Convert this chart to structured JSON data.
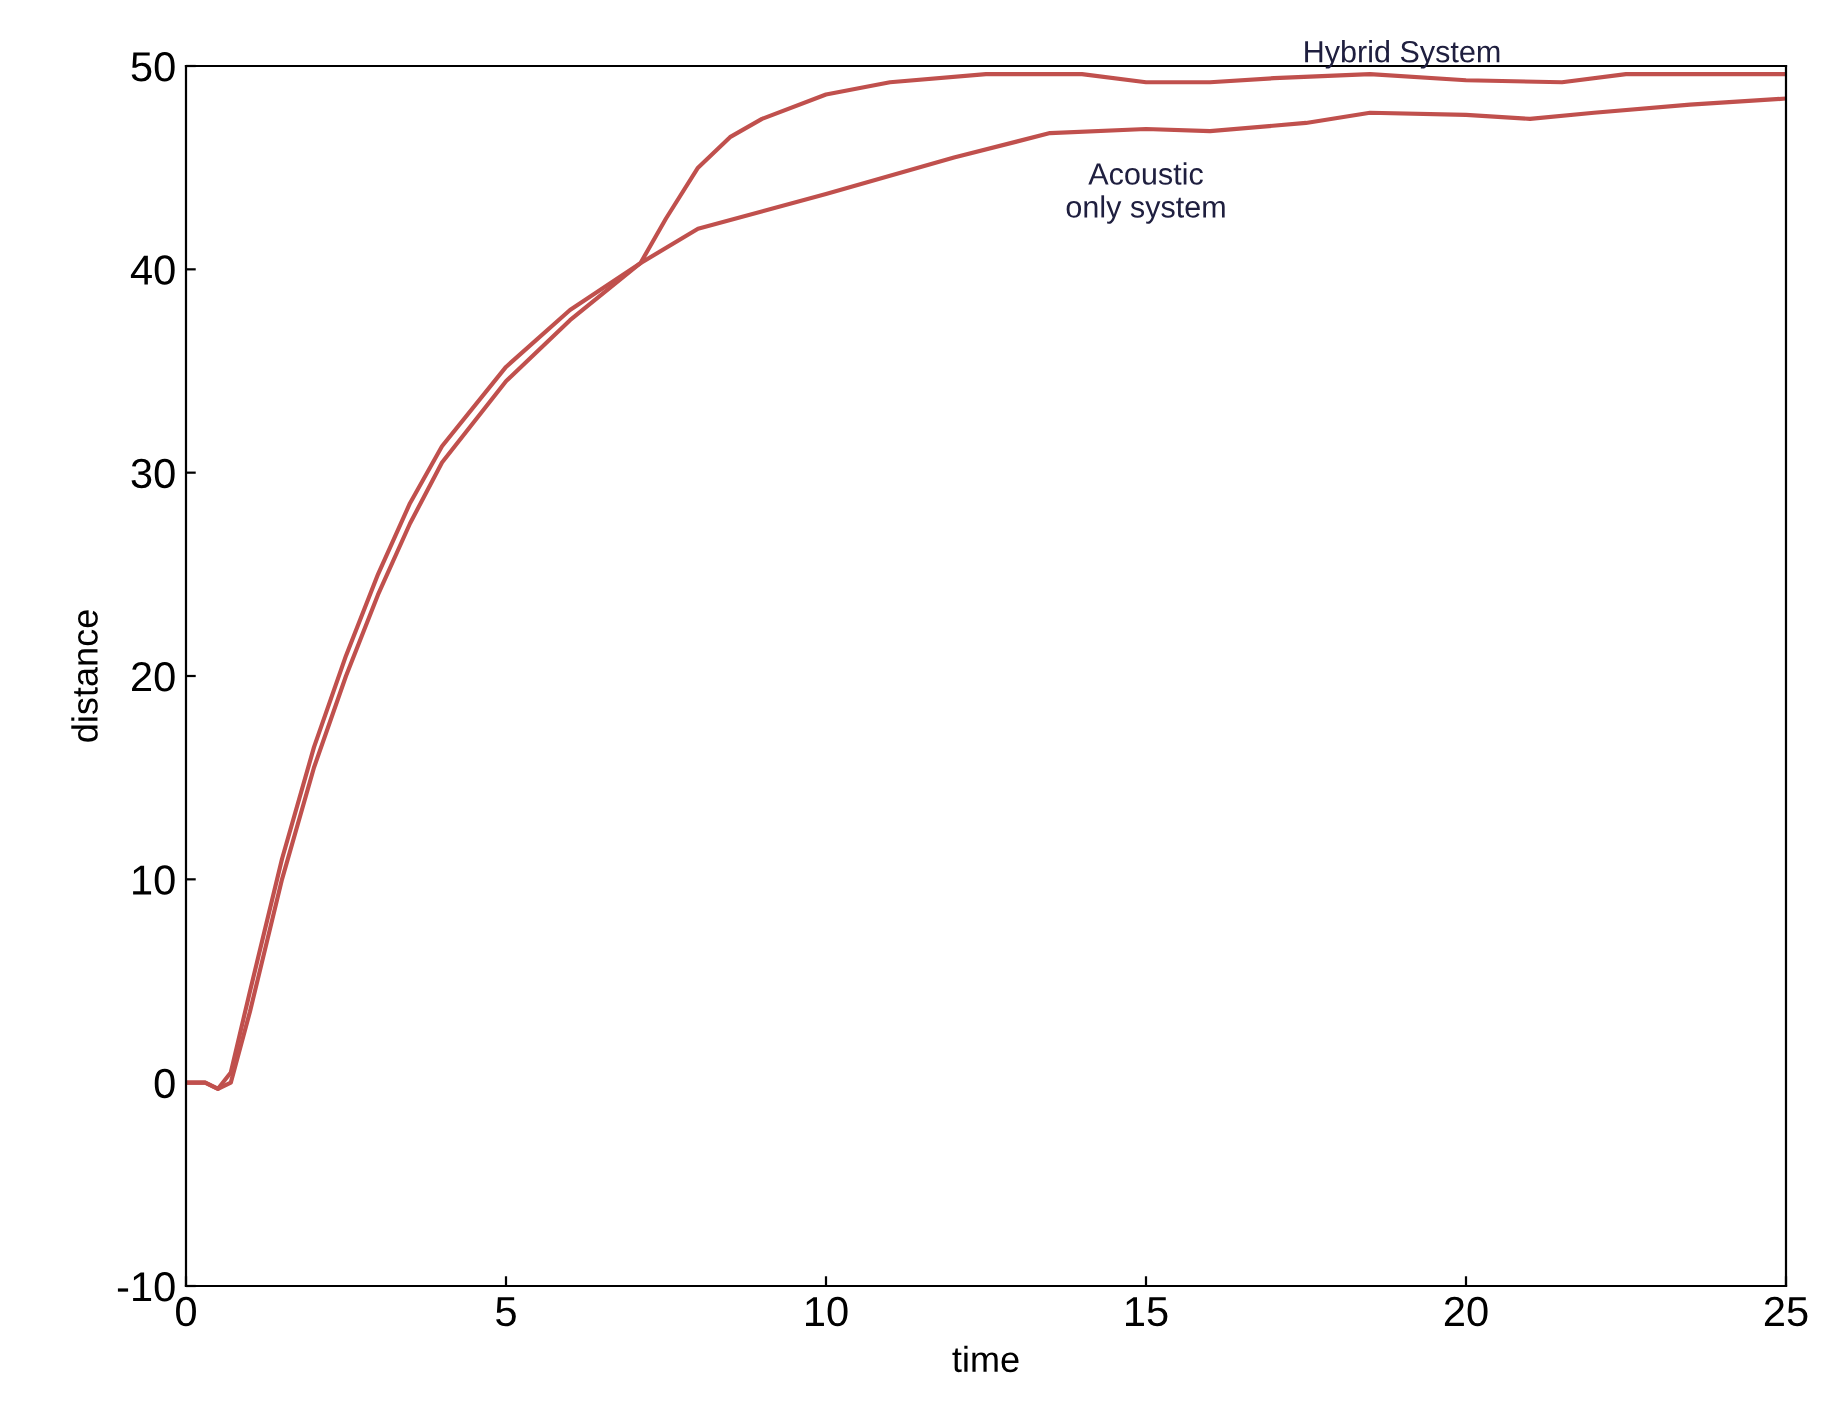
{
  "chart_data": {
    "type": "line",
    "xlabel": "time",
    "ylabel": "distance",
    "xlim": [
      0,
      25
    ],
    "ylim": [
      -10,
      50
    ],
    "xticks": [
      0,
      5,
      10,
      15,
      20,
      25
    ],
    "yticks": [
      -10,
      0,
      10,
      20,
      30,
      40,
      50
    ],
    "grid": false,
    "legend": false,
    "marker": "none",
    "line_style": "solid",
    "series": [
      {
        "color": "#c0504d",
        "x": [
          0,
          0.3,
          0.5,
          0.7,
          1,
          1.5,
          2,
          2.5,
          3,
          3.5,
          4,
          5,
          6,
          7.1,
          7.5,
          8,
          8.5,
          9,
          10,
          11,
          12.5,
          14,
          15,
          16,
          17,
          18.5,
          20,
          21.5,
          22.5,
          24,
          25
        ],
        "values": [
          0,
          0,
          -0.3,
          0.5,
          4.5,
          11,
          16.5,
          21,
          25,
          28.5,
          31.3,
          35.2,
          38,
          40.3,
          42.5,
          45,
          46.5,
          47.4,
          48.6,
          49.2,
          49.6,
          49.6,
          49.2,
          49.2,
          49.4,
          49.6,
          49.3,
          49.2,
          49.6,
          49.6,
          49.6
        ]
      },
      {
        "color": "#c0504d",
        "x": [
          0,
          0.3,
          0.5,
          0.7,
          1,
          1.5,
          2,
          2.5,
          3,
          3.5,
          4,
          5,
          6,
          7.1,
          8,
          10,
          12,
          13.5,
          15,
          16,
          17.5,
          18.5,
          20,
          21,
          22,
          23.5,
          25
        ],
        "values": [
          0,
          0,
          -0.3,
          0,
          3.5,
          10,
          15.5,
          20,
          24,
          27.5,
          30.5,
          34.5,
          37.5,
          40.3,
          42,
          43.7,
          45.5,
          46.7,
          46.9,
          46.8,
          47.2,
          47.7,
          47.6,
          47.4,
          47.7,
          48.1,
          48.4
        ]
      }
    ],
    "annotations": [
      {
        "text": "Hybrid System",
        "x": 19,
        "y": 49.6
      },
      {
        "text": "Acoustic\nonly system",
        "x": 15,
        "y": 46.9
      }
    ]
  }
}
